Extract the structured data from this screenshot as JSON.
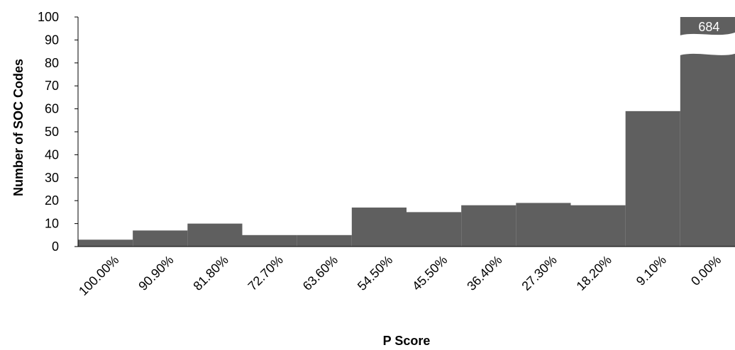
{
  "chart_data": {
    "type": "bar",
    "title": "",
    "xlabel": "P Score",
    "ylabel": "Number of SOC Codes",
    "categories": [
      "100.00%",
      "90.90%",
      "81.80%",
      "72.70%",
      "63.60%",
      "54.50%",
      "45.50%",
      "36.40%",
      "27.30%",
      "18.20%",
      "9.10%",
      "0.00%"
    ],
    "values": [
      3,
      7,
      10,
      5,
      5,
      17,
      15,
      18,
      19,
      18,
      59,
      684
    ],
    "ylim": [
      0,
      100
    ],
    "yticks": [
      0,
      10,
      20,
      30,
      40,
      50,
      60,
      70,
      80,
      90,
      100
    ],
    "grid": false,
    "bar_color": "#5f5f5f",
    "axis_break": true,
    "data_labels": [
      {
        "category": "0.00%",
        "text": "684"
      }
    ]
  }
}
